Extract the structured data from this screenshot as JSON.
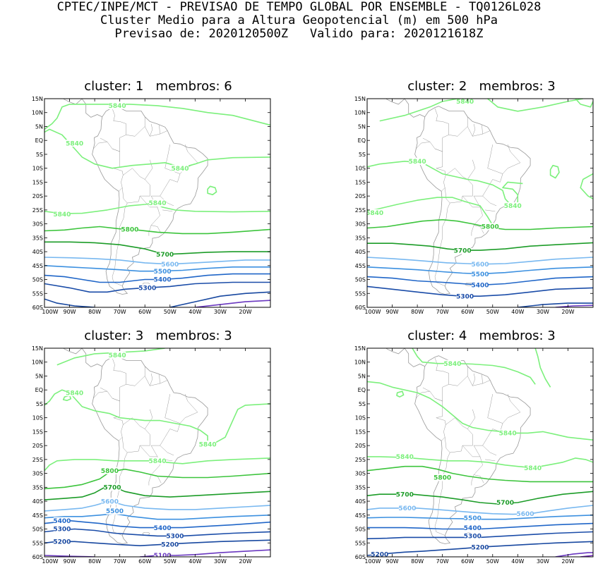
{
  "header": {
    "line1": "CPTEC/INPE/MCT - PREVISAO DE TEMPO GLOBAL POR ENSEMBLE - TQ0126L028",
    "line2": "Cluster Medio para a Altura Geopotencial (m) em 500 hPa",
    "line3": "Previsao de: 2020120500Z   Valido para: 2020121618Z"
  },
  "axes": {
    "lat_labels": [
      "15N",
      "10N",
      "5N",
      "EQ",
      "5S",
      "10S",
      "15S",
      "20S",
      "25S",
      "30S",
      "35S",
      "40S",
      "45S",
      "50S",
      "55S",
      "60S"
    ],
    "lon_labels": [
      "100W",
      "90W",
      "80W",
      "70W",
      "60W",
      "50W",
      "40W",
      "30W",
      "20W"
    ]
  },
  "colors": {
    "5840": "#7cf07c",
    "5800": "#3cc43c",
    "5700": "#1c9c28",
    "5600": "#78b8f0",
    "5500": "#3c90e0",
    "5400": "#2066c8",
    "5300": "#1a4ca8",
    "5200": "#1848a0",
    "5100": "#6a38c0",
    "5000": "#7a30c0",
    "coast": "#999999"
  },
  "panels": [
    {
      "title": "cluster: 1   membros: 6",
      "labels": [
        {
          "text": "5840",
          "lon": -71,
          "lat": 12.5,
          "level": "5840"
        },
        {
          "text": "5840",
          "lon": -88,
          "lat": -1,
          "level": "5840"
        },
        {
          "text": "5840",
          "lon": -46,
          "lat": -10,
          "level": "5840"
        },
        {
          "text": "5840",
          "lon": -55,
          "lat": -22.5,
          "level": "5840"
        },
        {
          "text": "5840",
          "lon": -93,
          "lat": -26.5,
          "level": "5840"
        },
        {
          "text": "5800",
          "lon": -66,
          "lat": -32,
          "level": "5800"
        },
        {
          "text": "5700",
          "lon": -52,
          "lat": -41,
          "level": "5700"
        },
        {
          "text": "5600",
          "lon": -50,
          "lat": -44.5,
          "level": "5600"
        },
        {
          "text": "5500",
          "lon": -53,
          "lat": -47,
          "level": "5500"
        },
        {
          "text": "5400",
          "lon": -53,
          "lat": -50,
          "level": "5400"
        },
        {
          "text": "5300",
          "lon": -59,
          "lat": -53,
          "level": "5300"
        }
      ]
    },
    {
      "title": "cluster: 2   membros: 3",
      "labels": [
        {
          "text": "5840",
          "lon": -61,
          "lat": 14,
          "level": "5840"
        },
        {
          "text": "5840",
          "lon": -80,
          "lat": -7.5,
          "level": "5840"
        },
        {
          "text": "5840",
          "lon": -42,
          "lat": -23.5,
          "level": "5840"
        },
        {
          "text": "5840",
          "lon": -97,
          "lat": -26,
          "level": "5840"
        },
        {
          "text": "5800",
          "lon": -51,
          "lat": -31,
          "level": "5800"
        },
        {
          "text": "5700",
          "lon": -62,
          "lat": -39.5,
          "level": "5700"
        },
        {
          "text": "5600",
          "lon": -55,
          "lat": -44.5,
          "level": "5600"
        },
        {
          "text": "5500",
          "lon": -55,
          "lat": -48,
          "level": "5500"
        },
        {
          "text": "5400",
          "lon": -55,
          "lat": -52,
          "level": "5400"
        },
        {
          "text": "5300",
          "lon": -61,
          "lat": -56,
          "level": "5300"
        }
      ]
    },
    {
      "title": "cluster: 3   membros: 3",
      "labels": [
        {
          "text": "5840",
          "lon": -71,
          "lat": 12.5,
          "level": "5840"
        },
        {
          "text": "5840",
          "lon": -88,
          "lat": -1,
          "level": "5840"
        },
        {
          "text": "5840",
          "lon": -35,
          "lat": -19.5,
          "level": "5840"
        },
        {
          "text": "5840",
          "lon": -55,
          "lat": -25.5,
          "level": "5840"
        },
        {
          "text": "5800",
          "lon": -74,
          "lat": -29,
          "level": "5800"
        },
        {
          "text": "5700",
          "lon": -73,
          "lat": -35,
          "level": "5700"
        },
        {
          "text": "5600",
          "lon": -74,
          "lat": -40,
          "level": "5600"
        },
        {
          "text": "5500",
          "lon": -72,
          "lat": -43.5,
          "level": "5500"
        },
        {
          "text": "5400",
          "lon": -93,
          "lat": -47,
          "level": "5400"
        },
        {
          "text": "5300",
          "lon": -93,
          "lat": -50,
          "level": "5300"
        },
        {
          "text": "5400",
          "lon": -53,
          "lat": -49.5,
          "level": "5400"
        },
        {
          "text": "5300",
          "lon": -48,
          "lat": -52.5,
          "level": "5300"
        },
        {
          "text": "5200",
          "lon": -93,
          "lat": -54.5,
          "level": "5200"
        },
        {
          "text": "5200",
          "lon": -50,
          "lat": -55.5,
          "level": "5200"
        },
        {
          "text": "5100",
          "lon": -53,
          "lat": -59.5,
          "level": "5100"
        }
      ]
    },
    {
      "title": "cluster: 4   membros: 3",
      "labels": [
        {
          "text": "5840",
          "lon": -66,
          "lat": 9.5,
          "level": "5840"
        },
        {
          "text": "5840",
          "lon": -44,
          "lat": -15.5,
          "level": "5840"
        },
        {
          "text": "5840",
          "lon": -85,
          "lat": -24,
          "level": "5840"
        },
        {
          "text": "5840",
          "lon": -34,
          "lat": -28,
          "level": "5840"
        },
        {
          "text": "5800",
          "lon": -70,
          "lat": -31.5,
          "level": "5800"
        },
        {
          "text": "5700",
          "lon": -85,
          "lat": -37.5,
          "level": "5700"
        },
        {
          "text": "5700",
          "lon": -45,
          "lat": -40.5,
          "level": "5700"
        },
        {
          "text": "5600",
          "lon": -84,
          "lat": -42.5,
          "level": "5600"
        },
        {
          "text": "5600",
          "lon": -37,
          "lat": -44.5,
          "level": "5600"
        },
        {
          "text": "5500",
          "lon": -58,
          "lat": -46,
          "level": "5500"
        },
        {
          "text": "5400",
          "lon": -58,
          "lat": -49.5,
          "level": "5400"
        },
        {
          "text": "5300",
          "lon": -58,
          "lat": -52.5,
          "level": "5300"
        },
        {
          "text": "5200",
          "lon": -55,
          "lat": -56.5,
          "level": "5200"
        },
        {
          "text": "5200",
          "lon": -95,
          "lat": -59,
          "level": "5200"
        }
      ]
    }
  ]
}
